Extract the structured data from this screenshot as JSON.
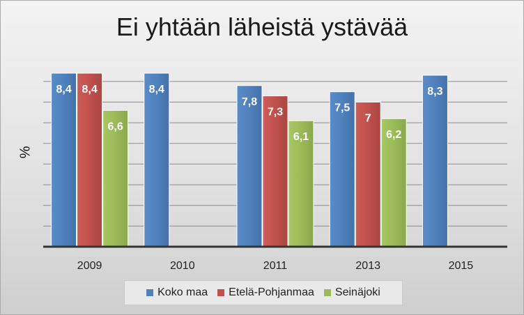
{
  "chart_data": {
    "type": "bar",
    "title": "Ei yhtään läheistä ystävää",
    "xlabel": "",
    "ylabel": "%",
    "ylim": [
      0,
      8.4
    ],
    "grid": true,
    "legend_position": "bottom",
    "categories": [
      "2009",
      "2010",
      "2011",
      "2013",
      "2015"
    ],
    "series": [
      {
        "name": "Koko maa",
        "color": "#4f81bd",
        "values": [
          8.4,
          8.4,
          7.8,
          7.5,
          8.3
        ],
        "labels": [
          "8,4",
          "8,4",
          "7,8",
          "7,5",
          "8,3"
        ]
      },
      {
        "name": "Etelä-Pohjanmaa",
        "color": "#c0504d",
        "values": [
          8.4,
          null,
          7.3,
          7.0,
          null
        ],
        "labels": [
          "8,4",
          "",
          "7,3",
          "7",
          ""
        ]
      },
      {
        "name": "Seinäjoki",
        "color": "#9bbb59",
        "values": [
          6.6,
          null,
          6.1,
          6.2,
          null
        ],
        "labels": [
          "6,6",
          "",
          "6,1",
          "6,2",
          ""
        ]
      }
    ]
  }
}
